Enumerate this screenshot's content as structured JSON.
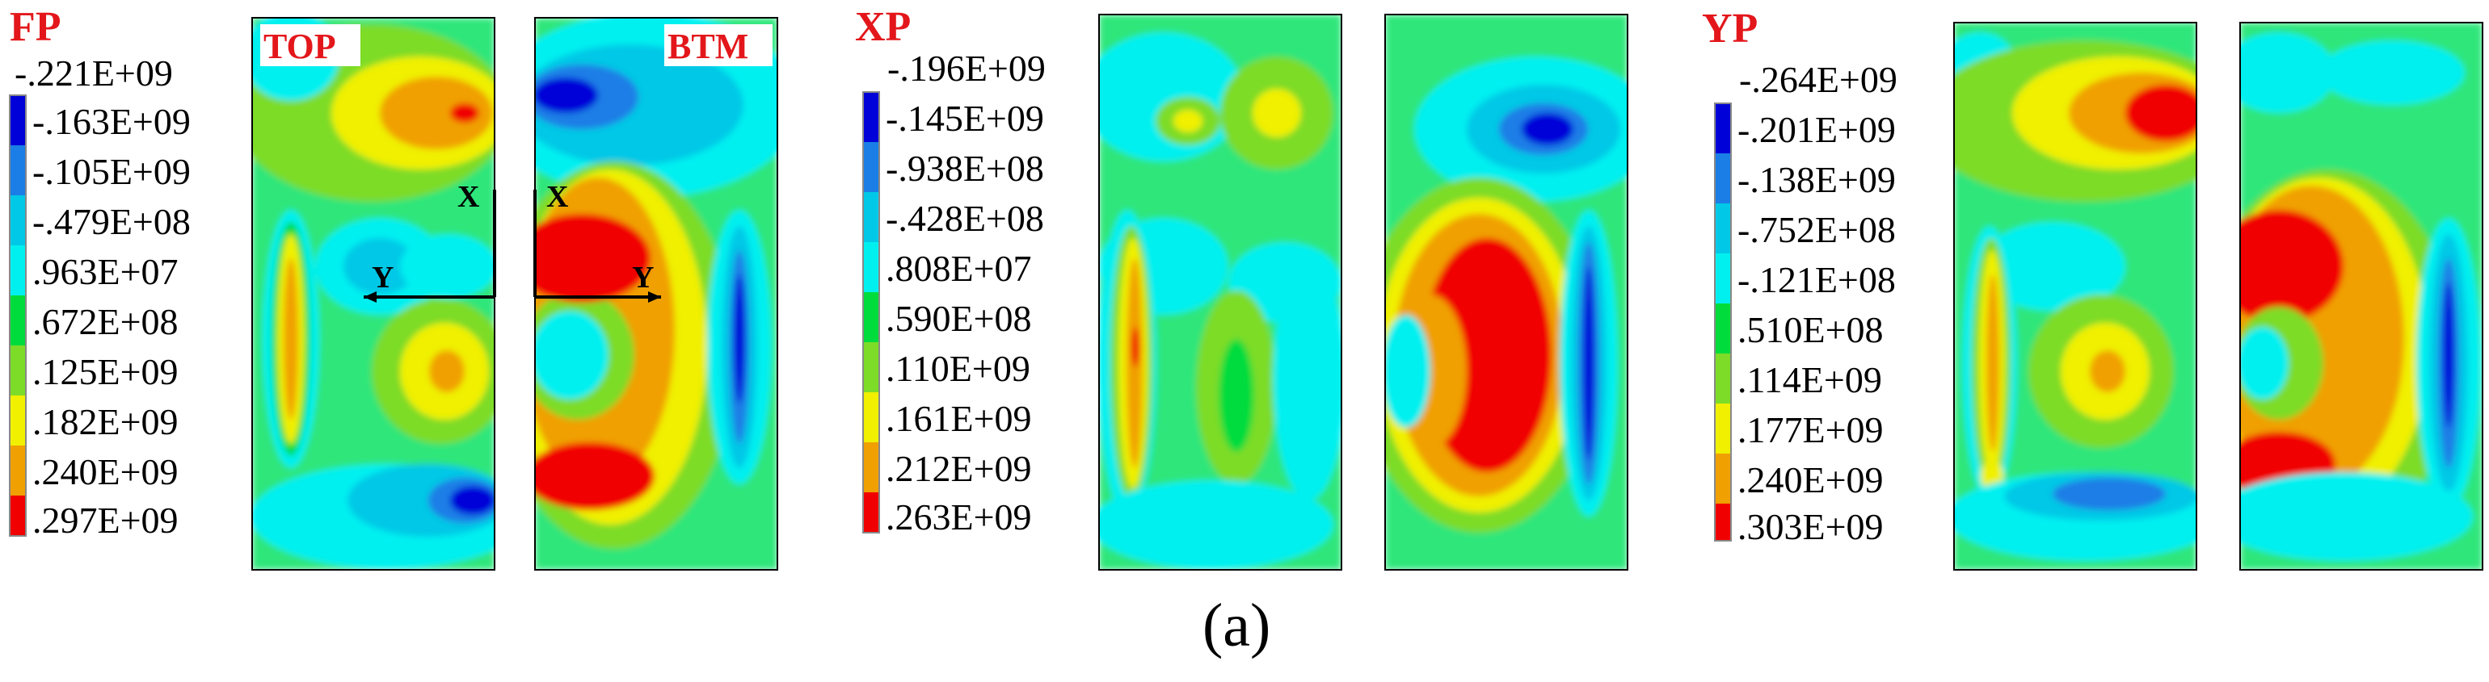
{
  "caption": "(a)",
  "colors": {
    "level_1": "#0000d8",
    "level_2": "#1a7ee6",
    "level_3": "#00c8e6",
    "level_4": "#00f0f0",
    "level_5": "#00dc3c",
    "level_6": "#7ddc28",
    "level_7": "#f0f000",
    "level_8": "#f0a000",
    "level_9": "#f00000",
    "field_bg": "#2de67a"
  },
  "groups": [
    {
      "id": "fp",
      "title": "FP",
      "legend_values": [
        ".297E+09",
        ".240E+09",
        ".182E+09",
        ".125E+09",
        ".672E+08",
        ".963E+07",
        "-.479E+08",
        "-.105E+09",
        "-.163E+09",
        "-.221E+09"
      ],
      "panels": [
        {
          "name": "top",
          "tag": "TOP"
        },
        {
          "name": "bottom",
          "tag": "BTM"
        }
      ],
      "axis_labels": {
        "x": "X",
        "y": "Y"
      }
    },
    {
      "id": "xp",
      "title": "XP",
      "legend_values": [
        ".263E+09",
        ".212E+09",
        ".161E+09",
        ".110E+09",
        ".590E+08",
        ".808E+07",
        "-.428E+08",
        "-.938E+08",
        "-.145E+09",
        "-.196E+09"
      ],
      "panels": [
        {
          "name": "top",
          "tag": ""
        },
        {
          "name": "bottom",
          "tag": ""
        }
      ]
    },
    {
      "id": "yp",
      "title": "YP",
      "legend_values": [
        ".303E+09",
        ".240E+09",
        ".177E+09",
        ".114E+09",
        ".510E+08",
        "-.121E+08",
        "-.752E+08",
        "-.138E+09",
        "-.201E+09",
        "-.264E+09"
      ],
      "panels": [
        {
          "name": "top",
          "tag": ""
        },
        {
          "name": "bottom",
          "tag": ""
        }
      ]
    }
  ]
}
